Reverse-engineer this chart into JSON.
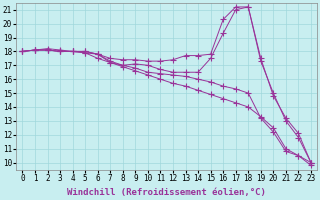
{
  "background_color": "#c8eef0",
  "grid_color": "#a0d8dc",
  "line_color": "#993399",
  "marker": "+",
  "marker_size": 4,
  "xlabel": "Windchill (Refroidissement éolien,°C)",
  "xlabel_fontsize": 6.5,
  "tick_fontsize": 5.5,
  "xlim": [
    -0.5,
    23.5
  ],
  "ylim": [
    9.5,
    21.5
  ],
  "xticks": [
    0,
    1,
    2,
    3,
    4,
    5,
    6,
    7,
    8,
    9,
    10,
    11,
    12,
    13,
    14,
    15,
    16,
    17,
    18,
    19,
    20,
    21,
    22,
    23
  ],
  "yticks": [
    10,
    11,
    12,
    13,
    14,
    15,
    16,
    17,
    18,
    19,
    20,
    21
  ],
  "series": [
    [
      18.0,
      18.1,
      18.1,
      18.0,
      18.0,
      17.9,
      17.5,
      17.2,
      16.9,
      16.6,
      16.3,
      16.0,
      15.7,
      15.5,
      15.2,
      14.9,
      14.6,
      14.3,
      14.0,
      13.3,
      12.5,
      11.0,
      10.5,
      9.8
    ],
    [
      18.0,
      18.1,
      18.1,
      18.0,
      18.0,
      17.9,
      17.8,
      17.3,
      17.0,
      16.8,
      16.5,
      16.4,
      16.3,
      16.2,
      16.0,
      15.8,
      15.5,
      15.3,
      15.0,
      13.2,
      12.2,
      10.8,
      10.5,
      10.0
    ],
    [
      18.0,
      18.1,
      18.1,
      18.0,
      18.0,
      18.0,
      17.8,
      17.5,
      17.4,
      17.4,
      17.3,
      17.3,
      17.4,
      17.7,
      17.7,
      17.8,
      20.3,
      21.2,
      21.2,
      17.3,
      15.0,
      13.0,
      11.8,
      10.0
    ],
    [
      18.0,
      18.1,
      18.2,
      18.1,
      18.0,
      18.0,
      17.8,
      17.2,
      17.0,
      17.1,
      17.0,
      16.7,
      16.5,
      16.5,
      16.5,
      17.5,
      19.3,
      21.0,
      21.2,
      17.5,
      14.8,
      13.2,
      12.1,
      10.0
    ]
  ]
}
